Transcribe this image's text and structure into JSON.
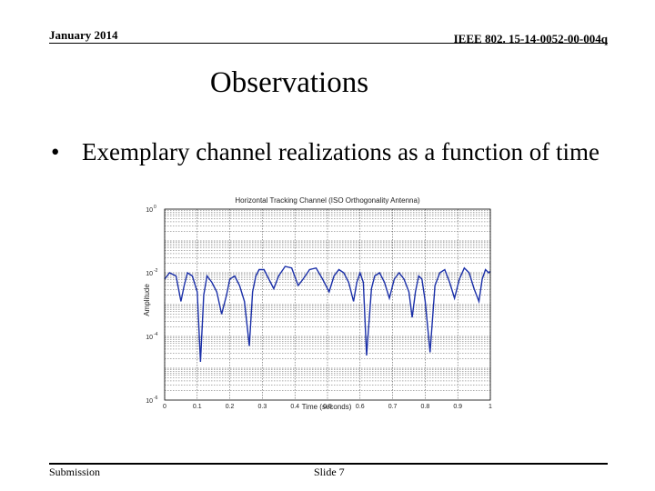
{
  "header": {
    "date": "January 2014",
    "doc_id": "IEEE 802. 15-14-0052-00-004q"
  },
  "slide": {
    "title": "Observations",
    "bullet_marker": "•",
    "bullet_text": "Exemplary channel realizations as a function of time"
  },
  "footer": {
    "left": "Submission",
    "center": "Slide 7"
  },
  "chart_data": {
    "type": "line",
    "title": "Horizontal Tracking Channel (ISO Orthogonality Antenna)",
    "xlabel": "Time (seconds)",
    "ylabel": "Amplitude",
    "xlim": [
      0,
      1
    ],
    "ylim_log10": [
      -6,
      0
    ],
    "y_scale": "log",
    "x_ticks": [
      "0",
      "0.1",
      "0.2",
      "0.3",
      "0.4",
      "0.5",
      "0.6",
      "0.7",
      "0.8",
      "0.9",
      "1"
    ],
    "y_ticks": [
      "10^0",
      "10^-2",
      "10^-4",
      "10^-6"
    ],
    "grid": true,
    "line_color": "#1a2fa8",
    "series": [
      {
        "x": [
          0.0,
          0.015,
          0.035,
          0.05,
          0.06,
          0.07,
          0.085,
          0.1,
          0.11,
          0.12,
          0.13,
          0.145,
          0.16,
          0.175,
          0.19,
          0.2,
          0.215,
          0.23,
          0.245,
          0.26,
          0.27,
          0.28,
          0.29,
          0.305,
          0.32,
          0.335,
          0.35,
          0.37,
          0.39,
          0.41,
          0.425,
          0.445,
          0.465,
          0.485,
          0.505,
          0.52,
          0.535,
          0.55,
          0.565,
          0.58,
          0.59,
          0.6,
          0.61,
          0.62,
          0.635,
          0.645,
          0.66,
          0.675,
          0.69,
          0.705,
          0.72,
          0.735,
          0.75,
          0.76,
          0.77,
          0.78,
          0.79,
          0.8,
          0.815,
          0.83,
          0.845,
          0.86,
          0.875,
          0.89,
          0.905,
          0.92,
          0.935,
          0.95,
          0.965,
          0.975,
          0.985,
          0.995,
          1.0
        ],
        "y_log10": [
          -2.2,
          -2.0,
          -2.1,
          -2.9,
          -2.4,
          -2.0,
          -2.1,
          -2.6,
          -4.8,
          -2.7,
          -2.1,
          -2.3,
          -2.6,
          -3.3,
          -2.7,
          -2.2,
          -2.1,
          -2.4,
          -2.9,
          -4.3,
          -2.6,
          -2.1,
          -1.9,
          -1.9,
          -2.2,
          -2.5,
          -2.1,
          -1.8,
          -1.85,
          -2.4,
          -2.2,
          -1.9,
          -1.85,
          -2.2,
          -2.6,
          -2.1,
          -1.9,
          -2.0,
          -2.3,
          -2.9,
          -2.3,
          -2.0,
          -2.3,
          -4.6,
          -2.5,
          -2.1,
          -2.0,
          -2.3,
          -2.8,
          -2.2,
          -2.0,
          -2.2,
          -2.6,
          -3.4,
          -2.6,
          -2.1,
          -2.2,
          -2.9,
          -4.5,
          -2.4,
          -2.0,
          -1.9,
          -2.3,
          -2.8,
          -2.2,
          -1.85,
          -2.0,
          -2.5,
          -2.9,
          -2.2,
          -1.9,
          -2.0,
          -1.95
        ]
      }
    ]
  }
}
